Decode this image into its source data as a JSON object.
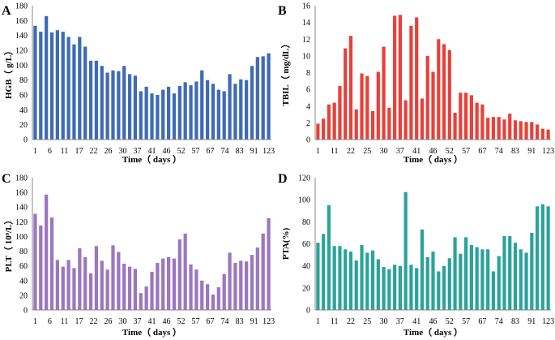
{
  "chart_data": [
    {
      "panel": "A",
      "type": "bar",
      "color": "#3f6bb5",
      "title": "",
      "xlabel": "Time（ days ）",
      "ylabel": "HGB（ g/L）",
      "ylim": [
        0,
        180
      ],
      "ytick_step": 20,
      "grid": false,
      "xtick_labels": [
        "1",
        "6",
        "11",
        "17",
        "22",
        "26",
        "30",
        "37",
        "41",
        "46",
        "52",
        "57",
        "67",
        "74",
        "83",
        "91",
        "123"
      ],
      "values": [
        153,
        145,
        166,
        144,
        147,
        145,
        138,
        128,
        138,
        125,
        106,
        106,
        99,
        90,
        93,
        92,
        99,
        88,
        86,
        65,
        71,
        62,
        60,
        67,
        71,
        62,
        72,
        77,
        73,
        78,
        93,
        80,
        75,
        67,
        65,
        88,
        75,
        81,
        80,
        99,
        111,
        112,
        116
      ]
    },
    {
      "panel": "B",
      "type": "bar",
      "color": "#e8403a",
      "title": "",
      "xlabel": "Time（ days ）",
      "ylabel": "TBIL（ mg/dL）",
      "ylim": [
        0,
        16
      ],
      "ytick_step": 2,
      "grid": false,
      "xtick_labels": [
        "1",
        "11",
        "22",
        "25",
        "30",
        "37",
        "41",
        "46",
        "52",
        "57",
        "67",
        "74",
        "83",
        "91",
        "123"
      ],
      "values": [
        1.9,
        2.5,
        4.2,
        4.4,
        6.4,
        10.9,
        12.4,
        3.6,
        7.9,
        7.6,
        3.4,
        8.1,
        11.1,
        3.8,
        14.8,
        14.9,
        4.7,
        13.6,
        14.6,
        4.9,
        10.0,
        8.1,
        12.0,
        11.4,
        10.7,
        3.2,
        5.6,
        5.6,
        5.3,
        4.4,
        4.2,
        2.6,
        2.7,
        2.7,
        2.4,
        3.1,
        2.3,
        2.2,
        2.1,
        2.1,
        1.8,
        1.3,
        1.2
      ]
    },
    {
      "panel": "C",
      "type": "bar",
      "color": "#9b77c0",
      "title": "",
      "xlabel": "Time（ days ）",
      "ylabel": "PLT（ 10⁹/L）",
      "ylim": [
        0,
        180
      ],
      "ytick_step": 20,
      "grid": false,
      "xtick_labels": [
        "1",
        "6",
        "11",
        "17",
        "22",
        "26",
        "30",
        "37",
        "41",
        "46",
        "52",
        "57",
        "67",
        "74",
        "83",
        "91",
        "123"
      ],
      "values": [
        131,
        115,
        157,
        126,
        68,
        59,
        68,
        57,
        84,
        72,
        50,
        87,
        67,
        55,
        88,
        79,
        63,
        59,
        56,
        23,
        32,
        52,
        64,
        70,
        72,
        70,
        96,
        104,
        62,
        55,
        40,
        35,
        21,
        31,
        49,
        78,
        64,
        67,
        66,
        75,
        85,
        104,
        125
      ]
    },
    {
      "panel": "D",
      "type": "bar",
      "color": "#2ba39a",
      "title": "",
      "xlabel": "Time（ days ）",
      "ylabel": "PTA(%)",
      "ylim": [
        0,
        120
      ],
      "ytick_step": 20,
      "grid": false,
      "xtick_labels": [
        "1",
        "11",
        "22",
        "25",
        "30",
        "37",
        "41",
        "46",
        "52",
        "57",
        "67",
        "74",
        "83",
        "91",
        "123"
      ],
      "values": [
        61,
        69,
        95,
        58,
        58,
        55,
        53,
        45,
        59,
        52,
        54,
        46,
        39,
        37,
        41,
        40,
        107,
        41,
        38,
        73,
        48,
        53,
        35,
        40,
        47,
        66,
        51,
        66,
        59,
        57,
        55,
        55,
        35,
        49,
        67,
        67,
        61,
        55,
        52,
        70,
        94,
        96,
        94
      ]
    }
  ]
}
